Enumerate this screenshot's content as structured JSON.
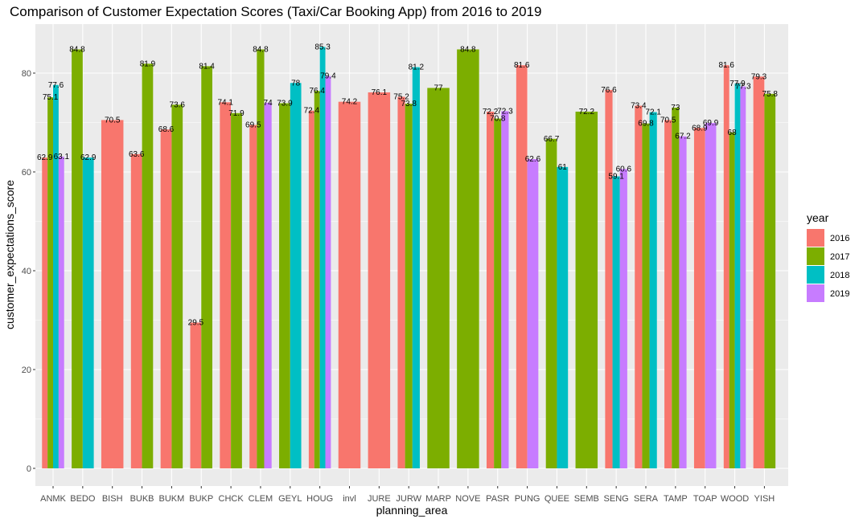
{
  "chart_data": {
    "type": "bar",
    "title": "Comparison of Customer Expectation Scores (Taxi/Car Booking App) from 2016 to 2019",
    "xlabel": "planning_area",
    "ylabel": "customer_expectations_score",
    "ylim": [
      0,
      90
    ],
    "yticks": [
      0,
      20,
      40,
      60,
      80
    ],
    "grid": true,
    "legend": {
      "title": "year",
      "position": "right"
    },
    "categories": [
      "ANMK",
      "BEDO",
      "BISH",
      "BUKB",
      "BUKM",
      "BUKP",
      "CHCK",
      "CLEM",
      "GEYL",
      "HOUG",
      "invl",
      "JURE",
      "JURW",
      "MARP",
      "NOVE",
      "PASR",
      "PUNG",
      "QUEE",
      "SEMB",
      "SENG",
      "SERA",
      "TAMP",
      "TOAP",
      "WOOD",
      "YISH"
    ],
    "series": [
      {
        "name": "2016",
        "color": "#F8766D",
        "values": [
          62.9,
          null,
          70.5,
          63.6,
          68.6,
          29.5,
          74.1,
          69.5,
          null,
          72.4,
          74.2,
          76.1,
          75.2,
          null,
          null,
          72.2,
          81.6,
          null,
          null,
          76.6,
          73.4,
          70.5,
          68.9,
          81.6,
          79.3
        ]
      },
      {
        "name": "2017",
        "color": "#7CAE00",
        "values": [
          75.1,
          84.8,
          null,
          81.9,
          73.6,
          81.4,
          71.9,
          84.8,
          73.9,
          76.4,
          null,
          null,
          73.8,
          77.0,
          84.8,
          70.8,
          null,
          66.7,
          72.2,
          null,
          69.8,
          73.0,
          null,
          68.0,
          75.8
        ]
      },
      {
        "name": "2018",
        "color": "#00BFC4",
        "values": [
          77.6,
          62.9,
          null,
          null,
          null,
          null,
          null,
          null,
          78.0,
          85.3,
          null,
          null,
          81.2,
          null,
          null,
          null,
          null,
          61.0,
          null,
          59.1,
          72.1,
          null,
          null,
          77.9,
          null
        ]
      },
      {
        "name": "2019",
        "color": "#C77CFF",
        "values": [
          63.1,
          null,
          null,
          null,
          null,
          null,
          null,
          74.0,
          null,
          79.4,
          null,
          null,
          null,
          null,
          null,
          72.3,
          62.6,
          null,
          null,
          60.6,
          null,
          67.2,
          69.9,
          77.3,
          null
        ]
      }
    ]
  }
}
